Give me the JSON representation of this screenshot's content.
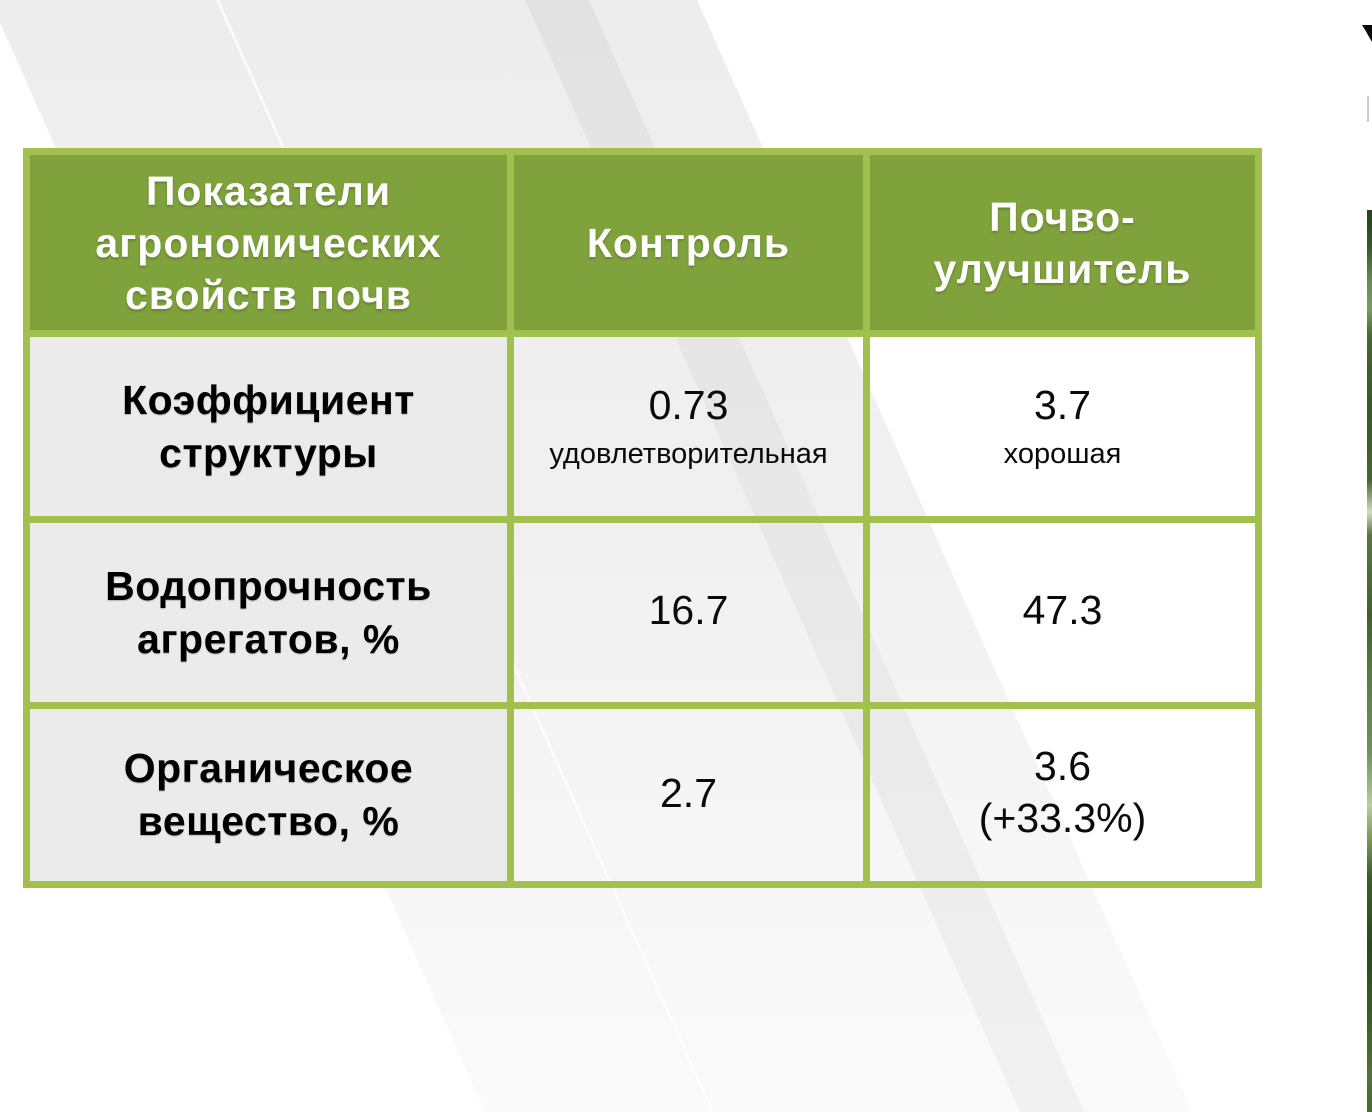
{
  "table": {
    "columns": [
      {
        "title": "Показатели\nагрономических\nсвойств почв"
      },
      {
        "title": "Контроль"
      },
      {
        "title": "Почво-\nулучшитель"
      }
    ],
    "rows": [
      {
        "label": "Коэффициент\nструктуры",
        "control": {
          "value": "0.73",
          "value2": "",
          "note": "удовлетворительная"
        },
        "improver": {
          "value": "3.7",
          "value2": "",
          "note": "хорошая"
        }
      },
      {
        "label": "Водопрочность\nагрегатов, %",
        "control": {
          "value": "16.7",
          "value2": "",
          "note": ""
        },
        "improver": {
          "value": "47.3",
          "value2": "",
          "note": ""
        }
      },
      {
        "label": "Органическое\nвещество, %",
        "control": {
          "value": "2.7",
          "value2": "",
          "note": ""
        },
        "improver": {
          "value": "3.6",
          "value2": "(+33.3%)",
          "note": ""
        }
      }
    ]
  },
  "colors": {
    "table_border": "#a2c04d",
    "header_fill": "#7fa23d",
    "header_text": "#ffffff",
    "label_cell_fill": "#ebebeb",
    "body_text": "#0a0a0a",
    "background": "#ffffff",
    "background_stripe": "#e2e2e2"
  }
}
